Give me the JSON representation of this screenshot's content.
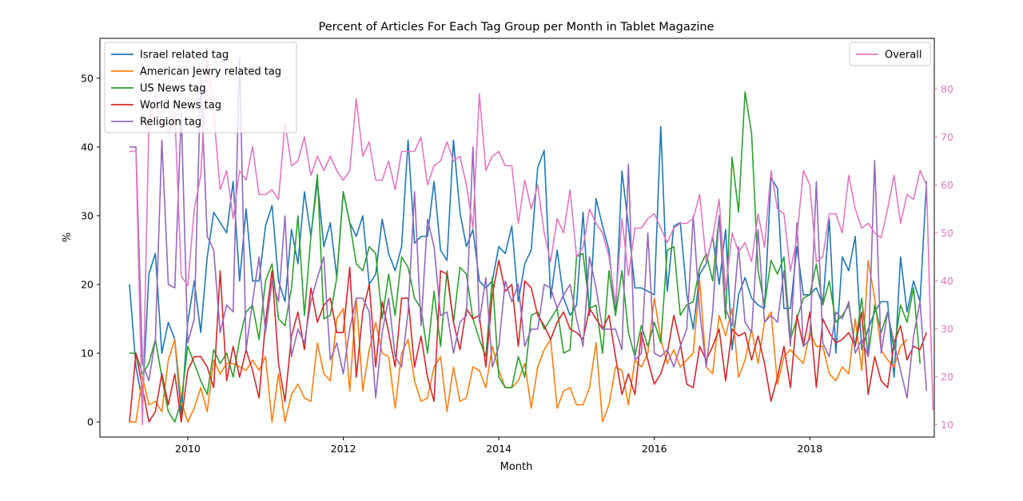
{
  "chart_data": {
    "type": "line",
    "title": "Percent of Articles For Each Tag Group per Month in Tablet Magazine",
    "xlabel": "Month",
    "ylabel": "%",
    "x_ticks": [
      "2010",
      "2012",
      "2014",
      "2016",
      "2018"
    ],
    "x_range": [
      2008.87,
      2019.6
    ],
    "x_start": "2009-04",
    "x_interval": "monthly",
    "ylim": [
      -2.2,
      55.8
    ],
    "y_ticks": [
      "0",
      "10",
      "20",
      "30",
      "40",
      "50"
    ],
    "y2lim": [
      7.4,
      90.6
    ],
    "y2_ticks": [
      "10",
      "20",
      "30",
      "40",
      "50",
      "60",
      "70",
      "80"
    ],
    "y2_color": "#e377c2",
    "legend_left_location": "upper left",
    "legend_right_location": "upper right",
    "grid": false,
    "series": [
      {
        "name": "Israel related tag",
        "color": "#1f77b4",
        "axis": "left",
        "values": [
          20.0,
          8.0,
          3.0,
          21.5,
          24.5,
          10.0,
          14.5,
          12.0,
          1.0,
          14.5,
          20.5,
          13.0,
          24.0,
          30.5,
          29.0,
          27.5,
          35.0,
          20.5,
          31.0,
          20.5,
          20.5,
          28.5,
          31.5,
          20.5,
          17.5,
          28.0,
          23.0,
          33.5,
          27.0,
          35.0,
          25.5,
          29.0,
          21.0,
          33.5,
          29.0,
          27.0,
          30.0,
          20.0,
          21.5,
          29.5,
          24.5,
          22.0,
          25.5,
          41.0,
          26.0,
          27.0,
          27.0,
          35.0,
          25.0,
          23.5,
          41.0,
          30.5,
          25.5,
          28.0,
          20.5,
          19.5,
          20.5,
          25.5,
          24.5,
          28.5,
          17.5,
          23.0,
          25.0,
          37.0,
          39.5,
          18.0,
          25.0,
          18.0,
          15.5,
          17.0,
          30.5,
          15.5,
          32.5,
          28.5,
          25.0,
          15.5,
          36.5,
          28.5,
          19.5,
          19.5,
          19.0,
          18.5,
          43.0,
          19.0,
          28.5,
          29.0,
          18.5,
          13.5,
          21.5,
          23.0,
          27.0,
          20.0,
          28.0,
          10.5,
          18.5,
          21.0,
          18.0,
          17.0,
          16.5,
          35.5,
          34.0,
          16.5,
          16.5,
          25.5,
          18.5,
          18.5,
          19.5,
          17.0,
          29.5,
          10.0,
          24.0,
          22.0,
          27.0,
          10.5,
          13.5,
          16.0,
          17.5,
          17.5,
          6.5,
          24.0,
          16.0,
          20.5,
          17.5,
          35.0
        ]
      },
      {
        "name": "American Jewry related tag",
        "color": "#ff7f0e",
        "axis": "left",
        "values": [
          0.0,
          0.0,
          6.5,
          2.5,
          3.0,
          1.5,
          9.0,
          12.0,
          3.0,
          0.0,
          2.0,
          5.0,
          1.5,
          9.0,
          7.0,
          8.5,
          8.5,
          8.0,
          7.5,
          9.0,
          7.5,
          9.5,
          0.0,
          7.0,
          0.0,
          4.0,
          5.5,
          3.5,
          3.0,
          11.5,
          7.0,
          6.0,
          15.0,
          16.5,
          4.5,
          18.0,
          4.5,
          10.5,
          14.5,
          10.0,
          9.5,
          2.0,
          10.0,
          12.0,
          6.0,
          3.0,
          3.5,
          8.0,
          9.5,
          1.5,
          8.0,
          3.0,
          3.5,
          8.0,
          7.5,
          5.0,
          11.0,
          7.5,
          5.0,
          5.0,
          6.0,
          8.5,
          2.0,
          8.0,
          10.5,
          12.0,
          2.0,
          4.5,
          5.0,
          2.5,
          2.5,
          5.0,
          11.5,
          0.0,
          2.5,
          8.0,
          7.5,
          2.5,
          9.0,
          8.0,
          10.0,
          18.0,
          12.0,
          8.5,
          10.5,
          8.0,
          9.0,
          10.0,
          20.5,
          8.0,
          7.0,
          15.5,
          12.5,
          16.5,
          6.5,
          9.0,
          13.5,
          8.5,
          14.5,
          16.0,
          5.5,
          9.5,
          10.5,
          9.5,
          8.5,
          13.0,
          11.0,
          11.0,
          7.0,
          6.0,
          8.0,
          7.0,
          15.0,
          7.5,
          23.5,
          18.0,
          10.5,
          9.0,
          8.0,
          11.0,
          12.0
        ]
      },
      {
        "name": "US News tag",
        "color": "#2ca02c",
        "axis": "left",
        "values": [
          10.0,
          10.0,
          7.0,
          8.5,
          12.0,
          6.5,
          1.5,
          0.0,
          3.0,
          11.0,
          8.5,
          6.0,
          4.0,
          10.5,
          8.5,
          10.0,
          6.5,
          12.0,
          16.0,
          17.0,
          12.0,
          20.5,
          23.0,
          15.0,
          14.0,
          19.5,
          30.0,
          15.5,
          27.0,
          36.0,
          15.0,
          15.5,
          21.0,
          33.5,
          29.0,
          23.0,
          22.0,
          25.5,
          24.5,
          15.0,
          21.5,
          15.5,
          24.0,
          22.5,
          18.0,
          16.5,
          10.0,
          19.0,
          11.0,
          22.0,
          14.5,
          22.5,
          21.5,
          15.0,
          12.0,
          9.5,
          21.0,
          6.5,
          5.0,
          5.0,
          9.5,
          6.5,
          15.5,
          16.0,
          13.5,
          15.0,
          16.5,
          10.0,
          10.5,
          24.0,
          24.5,
          16.5,
          17.0,
          10.0,
          22.0,
          15.5,
          22.0,
          13.0,
          9.5,
          14.0,
          11.0,
          14.5,
          11.5,
          25.0,
          25.5,
          15.5,
          17.0,
          17.5,
          22.5,
          24.5,
          20.5,
          30.0,
          15.0,
          38.5,
          30.5,
          48.0,
          42.0,
          22.0,
          17.0,
          23.5,
          21.5,
          24.0,
          12.0,
          15.0,
          18.0,
          18.5,
          23.0,
          17.0,
          20.5,
          14.5,
          15.5,
          17.0,
          11.0,
          18.0,
          9.5,
          17.0,
          13.0,
          16.0,
          10.5,
          17.0,
          14.5,
          19.5,
          8.5
        ]
      },
      {
        "name": "World News tag",
        "color": "#d62728",
        "axis": "left",
        "values": [
          0.0,
          10.0,
          5.0,
          0.0,
          1.5,
          7.0,
          2.5,
          7.0,
          0.0,
          7.5,
          9.5,
          9.5,
          8.0,
          5.0,
          22.0,
          6.0,
          11.0,
          6.5,
          10.5,
          7.5,
          3.5,
          14.5,
          22.0,
          8.5,
          3.0,
          12.5,
          16.0,
          10.5,
          19.5,
          14.5,
          17.0,
          18.0,
          13.0,
          13.0,
          22.5,
          6.5,
          16.0,
          20.0,
          8.0,
          17.5,
          13.0,
          8.0,
          18.0,
          18.0,
          8.0,
          12.5,
          6.5,
          3.0,
          22.0,
          21.5,
          14.5,
          10.5,
          16.5,
          15.0,
          15.5,
          8.0,
          18.5,
          23.5,
          19.0,
          20.0,
          11.0,
          20.5,
          19.5,
          15.5,
          14.0,
          12.0,
          14.5,
          16.0,
          13.5,
          13.0,
          12.0,
          16.5,
          15.0,
          13.5,
          15.5,
          9.5,
          4.0,
          7.0,
          4.0,
          13.0,
          9.0,
          5.5,
          7.0,
          10.0,
          15.5,
          11.5,
          5.5,
          5.0,
          11.0,
          9.0,
          11.0,
          13.5,
          6.0,
          13.5,
          12.5,
          13.0,
          9.0,
          12.5,
          8.5,
          3.0,
          6.5,
          11.0,
          5.0,
          15.5,
          11.0,
          16.0,
          5.0,
          15.0,
          13.0,
          11.5,
          12.0,
          13.0,
          11.0,
          16.0,
          4.0,
          9.5,
          6.0,
          5.0,
          11.5,
          14.0,
          9.0,
          11.0,
          10.5,
          13.0
        ]
      },
      {
        "name": "Religion tag",
        "color": "#9467bd",
        "axis": "left",
        "values": [
          40.0,
          40.0,
          8.5,
          6.0,
          12.0,
          41.0,
          20.0,
          19.5,
          45.0,
          11.5,
          15.0,
          50.0,
          27.0,
          25.0,
          13.0,
          17.0,
          16.0,
          53.0,
          10.5,
          17.5,
          24.0,
          13.0,
          20.5,
          17.5,
          30.0,
          9.5,
          13.5,
          11.5,
          17.5,
          21.0,
          24.0,
          9.0,
          11.5,
          7.0,
          13.5,
          18.0,
          18.0,
          16.0,
          3.5,
          13.0,
          18.0,
          9.5,
          8.0,
          16.0,
          33.5,
          14.0,
          29.5,
          25.5,
          15.5,
          16.0,
          10.0,
          14.5,
          15.5,
          40.0,
          14.5,
          21.0,
          8.0,
          11.0,
          20.5,
          17.5,
          20.0,
          11.0,
          13.5,
          13.5,
          20.0,
          19.5,
          16.5,
          18.5,
          20.0,
          15.0,
          11.0,
          24.0,
          19.5,
          13.5,
          13.5,
          13.5,
          10.5,
          37.5,
          9.0,
          10.0,
          27.5,
          10.0,
          9.5,
          10.5,
          8.0,
          11.0,
          13.5,
          30.0,
          16.0,
          8.0,
          16.0,
          30.0,
          16.5,
          14.0,
          25.5,
          14.5,
          13.0,
          28.0,
          14.5,
          15.5,
          14.5,
          22.0,
          11.0,
          29.0,
          11.0,
          12.0,
          35.0,
          11.5,
          9.5,
          16.0,
          15.0,
          17.5,
          10.0,
          12.0,
          9.5,
          38.0,
          10.0,
          16.0,
          11.5,
          7.5,
          3.5,
          12.5,
          17.5,
          4.5
        ]
      },
      {
        "name": "Overall",
        "color": "#e377c2",
        "axis": "right",
        "values": [
          67.0,
          67.0,
          10.0,
          73.0,
          79.0,
          73.0,
          71.0,
          75.0,
          41.0,
          39.0,
          55.0,
          62.0,
          86.0,
          75.0,
          59.0,
          63.0,
          53.0,
          63.0,
          61.0,
          68.0,
          58.0,
          58.0,
          59.0,
          57.0,
          73.0,
          64.0,
          65.0,
          70.0,
          62.0,
          66.0,
          63.0,
          66.0,
          63.0,
          61.0,
          63.0,
          78.0,
          66.0,
          69.0,
          61.0,
          61.0,
          65.0,
          59.0,
          67.0,
          67.0,
          67.0,
          70.0,
          60.0,
          64.0,
          65.0,
          69.0,
          65.0,
          66.0,
          60.0,
          51.0,
          79.0,
          63.0,
          66.0,
          67.0,
          64.0,
          64.0,
          52.0,
          61.0,
          55.0,
          60.0,
          50.0,
          44.0,
          53.0,
          50.0,
          59.0,
          45.0,
          47.0,
          55.0,
          52.0,
          50.0,
          45.0,
          35.0,
          53.0,
          41.0,
          51.0,
          51.0,
          53.0,
          54.0,
          51.0,
          48.0,
          51.0,
          52.0,
          52.0,
          53.0,
          58.0,
          44.0,
          49.0,
          57.0,
          38.0,
          50.0,
          46.0,
          48.0,
          44.0,
          54.0,
          47.0,
          63.0,
          55.0,
          54.0,
          42.0,
          49.0,
          63.0,
          60.0,
          44.0,
          45.0,
          54.0,
          54.0,
          50.0,
          62.0,
          55.0,
          51.0,
          52.0,
          50.0,
          49.0,
          55.0,
          62.0,
          52.0,
          58.0,
          57.0,
          63.0,
          60.0,
          13.0
        ]
      }
    ]
  }
}
